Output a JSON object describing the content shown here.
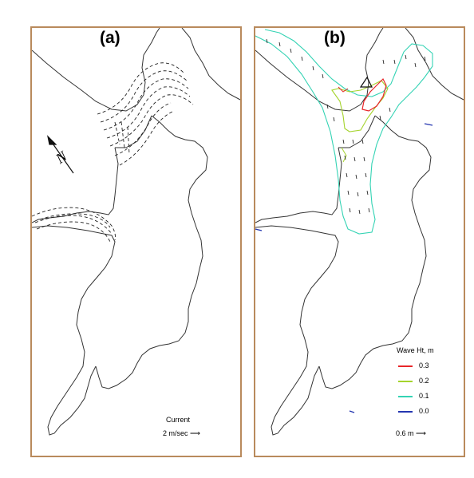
{
  "panels": {
    "a": {
      "label": "(a)",
      "current_title": "Current",
      "current_scale": "2 m/sec",
      "north_symbol": "N"
    },
    "b": {
      "label": "(b)",
      "legend_title": "Wave Ht, m",
      "legend": [
        {
          "label": "0.3",
          "color": "#e8262a"
        },
        {
          "label": "0.2",
          "color": "#a5d42d"
        },
        {
          "label": "0.1",
          "color": "#34d3b4"
        },
        {
          "label": "0.0",
          "color": "#2436b0"
        }
      ],
      "wave_scale": "0.6 m"
    }
  },
  "colors": {
    "frame": "#b98a5c",
    "shoreline": "#333333"
  }
}
